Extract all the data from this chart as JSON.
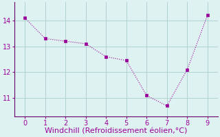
{
  "x": [
    0,
    1,
    2,
    3,
    4,
    5,
    6,
    7,
    8,
    9
  ],
  "y": [
    14.1,
    13.3,
    13.2,
    13.1,
    12.6,
    12.45,
    11.1,
    10.7,
    12.1,
    14.2
  ],
  "line_color": "#990099",
  "marker": "s",
  "marker_size": 2.5,
  "line_width": 0.8,
  "xlabel": "Windchill (Refroidissement éolien,°C)",
  "xlabel_fontsize": 8,
  "xlabel_color": "#990099",
  "xtick_color": "#990099",
  "ytick_color": "#990099",
  "xlim": [
    -0.5,
    9.5
  ],
  "ylim": [
    10.3,
    14.7
  ],
  "yticks": [
    11,
    12,
    13,
    14
  ],
  "xticks": [
    0,
    1,
    2,
    3,
    4,
    5,
    6,
    7,
    8,
    9
  ],
  "background_color": "#dff2f2",
  "grid_color": "#aacccc",
  "spine_color": "#660066"
}
